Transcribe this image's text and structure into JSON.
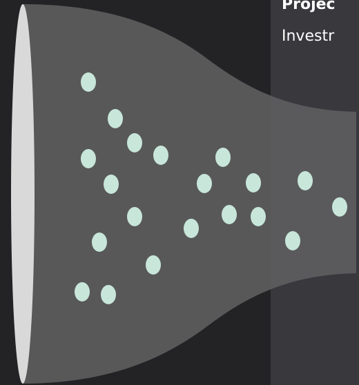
{
  "header": {
    "title": "Projec",
    "subtitle": "Investr"
  },
  "colors": {
    "background": "#232326",
    "panel": "#38383d",
    "funnel": "#5e5e5f",
    "mouth": "#d9d9d9",
    "dot": "#c8e6da"
  }
}
